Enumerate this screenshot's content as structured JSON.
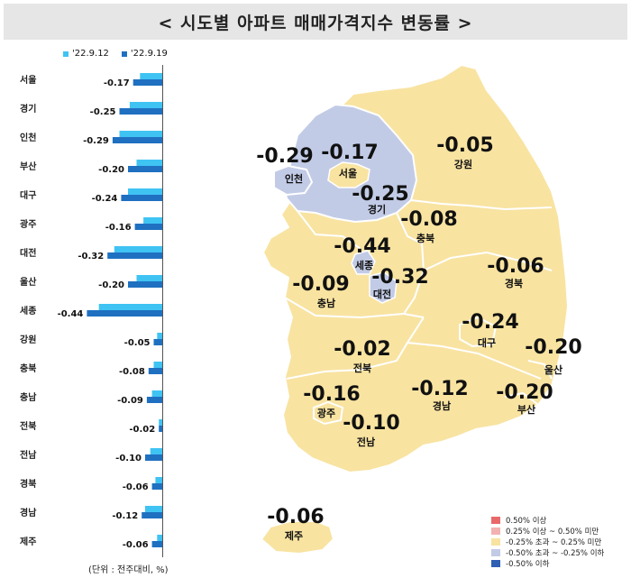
{
  "title": "< 시도별 아파트 매매가격지수 변동률 >",
  "unit_note": "(단위 : 전주대비, %)",
  "colors": {
    "prev": "#3fc3f3",
    "curr": "#1f70c1",
    "map_yellow": "#f8e3a1",
    "map_blue": "#c2cbe6"
  },
  "chart_data": {
    "type": "bar",
    "orientation": "horizontal",
    "categories": [
      "서울",
      "경기",
      "인천",
      "부산",
      "대구",
      "광주",
      "대전",
      "울산",
      "세종",
      "강원",
      "충북",
      "충남",
      "전북",
      "전남",
      "경북",
      "경남",
      "제주"
    ],
    "series": [
      {
        "name": "'22.9.12",
        "values": [
          -0.13,
          -0.19,
          -0.25,
          -0.15,
          -0.2,
          -0.11,
          -0.28,
          -0.15,
          -0.37,
          -0.03,
          -0.05,
          -0.06,
          -0.02,
          -0.07,
          -0.04,
          -0.1,
          -0.03
        ]
      },
      {
        "name": "'22.9.19",
        "values": [
          -0.17,
          -0.25,
          -0.29,
          -0.2,
          -0.24,
          -0.16,
          -0.32,
          -0.2,
          -0.44,
          -0.05,
          -0.08,
          -0.09,
          -0.02,
          -0.1,
          -0.06,
          -0.12,
          -0.06
        ]
      }
    ],
    "data_labels": [
      "-0.17",
      "-0.25",
      "-0.29",
      "-0.20",
      "-0.24",
      "-0.16",
      "-0.32",
      "-0.20",
      "-0.44",
      "-0.05",
      "-0.08",
      "-0.09",
      "-0.02",
      "-0.10",
      "-0.06",
      "-0.12",
      "-0.06"
    ],
    "xlim": [
      -0.5,
      0
    ]
  },
  "map": {
    "regions": [
      {
        "name": "인천",
        "value": "-0.29"
      },
      {
        "name": "서울",
        "value": "-0.17"
      },
      {
        "name": "경기",
        "value": "-0.25"
      },
      {
        "name": "강원",
        "value": "-0.05"
      },
      {
        "name": "충북",
        "value": "-0.08"
      },
      {
        "name": "세종",
        "value": "-0.44"
      },
      {
        "name": "대전",
        "value": "-0.32"
      },
      {
        "name": "충남",
        "value": "-0.09"
      },
      {
        "name": "경북",
        "value": "-0.06"
      },
      {
        "name": "대구",
        "value": "-0.24"
      },
      {
        "name": "울산",
        "value": "-0.20"
      },
      {
        "name": "전북",
        "value": "-0.02"
      },
      {
        "name": "광주",
        "value": "-0.16"
      },
      {
        "name": "경남",
        "value": "-0.12"
      },
      {
        "name": "부산",
        "value": "-0.20"
      },
      {
        "name": "전남",
        "value": "-0.10"
      },
      {
        "name": "제주",
        "value": "-0.06"
      }
    ],
    "legend": [
      {
        "label": "0.50% 이상",
        "color": "#e8696b"
      },
      {
        "label": "0.25% 이상 ~ 0.50% 미만",
        "color": "#f3b1b1"
      },
      {
        "label": "-0.25% 초과 ~ 0.25% 미만",
        "color": "#f8e3a1"
      },
      {
        "label": "-0.50% 초과 ~ -0.25% 이하",
        "color": "#c2cbe6"
      },
      {
        "label": "-0.50% 이하",
        "color": "#2f5fb3"
      }
    ]
  }
}
